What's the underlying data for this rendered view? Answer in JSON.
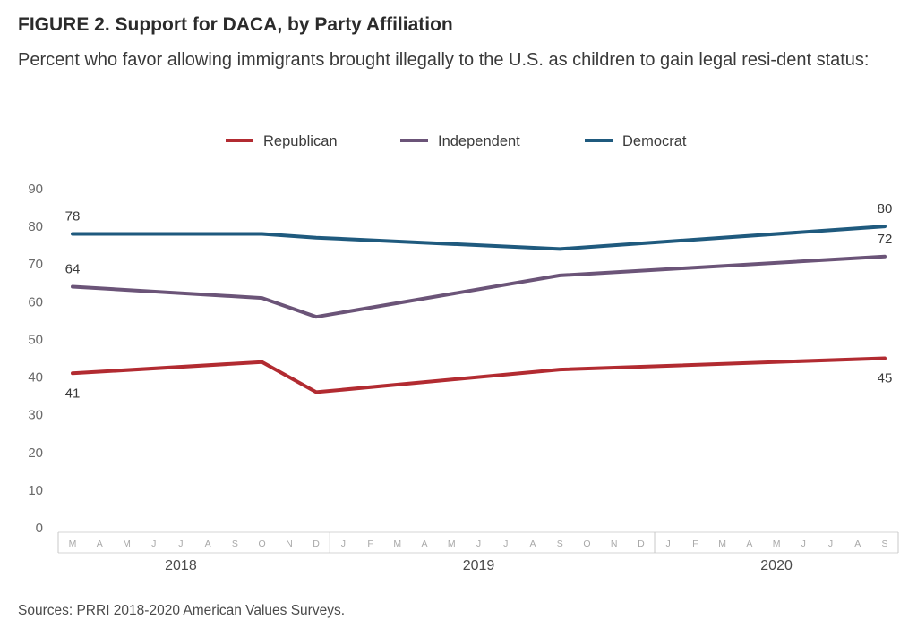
{
  "figure": {
    "title": "FIGURE 2. Support for DACA, by Party Affiliation",
    "subtitle": "Percent who favor allowing immigrants brought illegally to the U.S. as children to gain legal resi-dent status:",
    "source": "Sources: PRRI 2018-2020 American Values Surveys."
  },
  "chart_data": {
    "type": "line",
    "title": "FIGURE 2. Support for DACA, by Party Affiliation",
    "subtitle": "Percent who favor allowing immigrants brought illegally to the U.S. as children to gain legal resi-dent status:",
    "xlabel": "",
    "ylabel": "",
    "ylim": [
      0,
      90
    ],
    "yticks": [
      0,
      10,
      20,
      30,
      40,
      50,
      60,
      70,
      80,
      90
    ],
    "grid": false,
    "legend": "top-center",
    "x_axis": {
      "months": [
        "M",
        "A",
        "M",
        "J",
        "J",
        "A",
        "S",
        "O",
        "N",
        "D",
        "J",
        "F",
        "M",
        "A",
        "M",
        "J",
        "J",
        "A",
        "S",
        "O",
        "N",
        "D",
        "J",
        "F",
        "M",
        "A",
        "M",
        "J",
        "J",
        "A",
        "S"
      ],
      "years": [
        {
          "label": "2018",
          "center": "2018-07"
        },
        {
          "label": "2019",
          "center": "2019-06"
        },
        {
          "label": "2020",
          "center": "2020-05"
        }
      ],
      "range": [
        "2018-03",
        "2020-09"
      ]
    },
    "series": [
      {
        "name": "Republican",
        "color": "#b22b31",
        "points": [
          {
            "x": "2018-03",
            "y": 41
          },
          {
            "x": "2018-10",
            "y": 44
          },
          {
            "x": "2018-12",
            "y": 36
          },
          {
            "x": "2019-09",
            "y": 42
          },
          {
            "x": "2020-09",
            "y": 45
          }
        ],
        "labels": [
          {
            "x": "2018-03",
            "text": "41",
            "pos": "below"
          },
          {
            "x": "2020-09",
            "text": "45",
            "pos": "below"
          }
        ]
      },
      {
        "name": "Independent",
        "color": "#6b5478",
        "points": [
          {
            "x": "2018-03",
            "y": 64
          },
          {
            "x": "2018-10",
            "y": 61
          },
          {
            "x": "2018-12",
            "y": 56
          },
          {
            "x": "2019-09",
            "y": 67
          },
          {
            "x": "2020-09",
            "y": 72
          }
        ],
        "labels": [
          {
            "x": "2018-03",
            "text": "64",
            "pos": "above"
          },
          {
            "x": "2020-09",
            "text": "72",
            "pos": "above"
          }
        ]
      },
      {
        "name": "Democrat",
        "color": "#1f5a7e",
        "points": [
          {
            "x": "2018-03",
            "y": 78
          },
          {
            "x": "2018-10",
            "y": 78
          },
          {
            "x": "2018-12",
            "y": 77
          },
          {
            "x": "2019-09",
            "y": 74
          },
          {
            "x": "2020-09",
            "y": 80
          }
        ],
        "labels": [
          {
            "x": "2018-03",
            "text": "78",
            "pos": "above"
          },
          {
            "x": "2020-09",
            "text": "80",
            "pos": "above"
          }
        ]
      }
    ]
  }
}
